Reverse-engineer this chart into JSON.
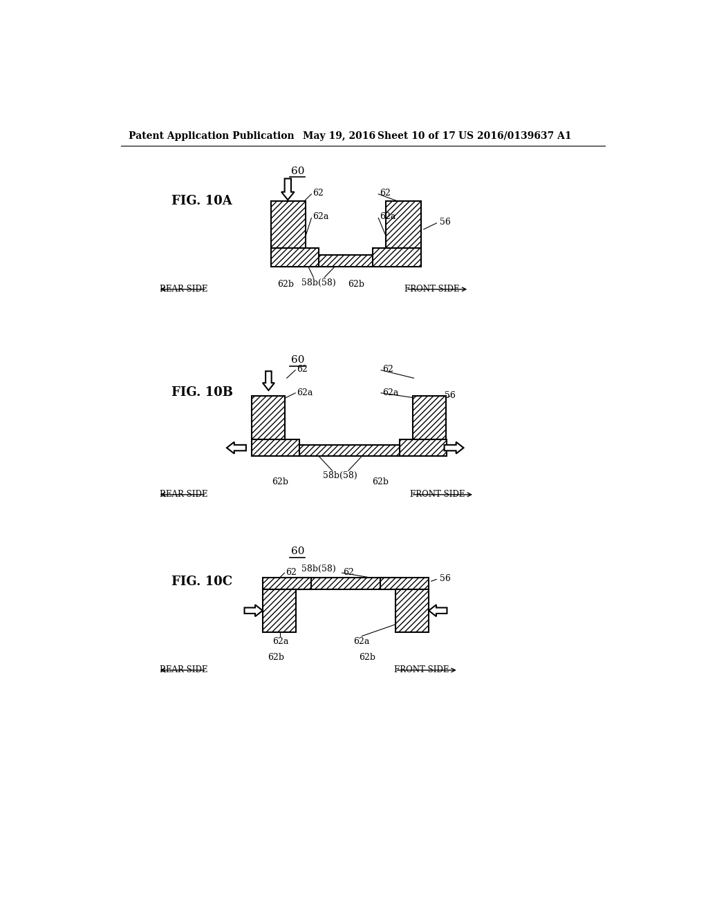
{
  "bg_color": "#ffffff",
  "header_text": "Patent Application Publication",
  "header_date": "May 19, 2016",
  "header_sheet": "Sheet 10 of 17",
  "header_patent": "US 2016/0139637 A1",
  "fig_labels": [
    "FIG. 10A",
    "FIG. 10B",
    "FIG. 10C"
  ],
  "hatch_pattern": "////",
  "line_color": "#000000",
  "hatch_color": "#000000",
  "fill_color": "#ffffff"
}
